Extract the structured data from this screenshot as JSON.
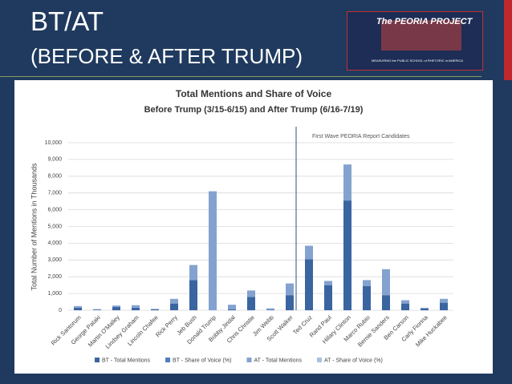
{
  "header": {
    "title": "BT/AT",
    "subtitle": "(BEFORE & AFTER TRUMP)",
    "logo_title": "The PEORIA PROJECT",
    "logo_caption": "MEASURING the PUBLIC SCHOOL of RHETORIC in AMERICA"
  },
  "chart_data": {
    "type": "stacked_bar",
    "title": "Total Mentions and Share of Voice",
    "subtitle": "Before Trump (3/15-6/15) and After Trump (6/16-7/19)",
    "y_label": "Total Number of Mentions in Thousands",
    "annotation": "First Wave PEORIA Report Candidates",
    "categories": [
      "Rick Santorum",
      "George Pataki",
      "Martin O'Malley",
      "Lindsey Graham",
      "Lincoln Chafee",
      "Rick Perry",
      "Jeb Bush",
      "Donald Trump",
      "Bobby Jindal",
      "Chris Christie",
      "Jim Webb",
      "Scott Walker",
      "Ted Cruz",
      "Rand Paul",
      "Hillary Clinton",
      "Marco Rubio",
      "Bernie Sanders",
      "Ben Carson",
      "Carly Fiorina",
      "Mike Huckabee"
    ],
    "series": [
      {
        "name": "BT - Total Mentions",
        "color": "#3a65a0",
        "values": [
          150,
          30,
          200,
          150,
          50,
          400,
          1800,
          0,
          50,
          800,
          30,
          900,
          3050,
          1500,
          6550,
          1450,
          900,
          400,
          100,
          450
        ]
      },
      {
        "name": "BT - Share of Voice (%)",
        "color": "#4f7fbf",
        "values": [
          null,
          null,
          null,
          null,
          null,
          null,
          null,
          null,
          null,
          null,
          null,
          null,
          null,
          null,
          null,
          null,
          null,
          null,
          null,
          null
        ]
      },
      {
        "name": "AT - Total Mentions",
        "color": "#84a2cf",
        "values": [
          100,
          40,
          80,
          150,
          30,
          280,
          900,
          7100,
          280,
          380,
          80,
          700,
          800,
          250,
          2150,
          350,
          1550,
          200,
          50,
          230
        ]
      },
      {
        "name": "AT - Share of Voice (%)",
        "color": "#a9c0e0",
        "values": [
          null,
          null,
          null,
          null,
          null,
          null,
          null,
          null,
          null,
          null,
          null,
          null,
          null,
          null,
          null,
          null,
          null,
          null,
          null,
          null
        ]
      }
    ],
    "ylim": [
      0,
      10000
    ],
    "yticks": [
      0,
      {
        "value": 1000,
        "label": "1,000"
      },
      {
        "value": 2000,
        "label": "2,000"
      },
      {
        "value": 3000,
        "label": "3,000"
      },
      {
        "value": 4000,
        "label": "4,000"
      },
      {
        "value": 5000,
        "label": "5,000"
      },
      {
        "value": 6000,
        "label": "6,000"
      },
      {
        "value": 7000,
        "label": "7,000"
      },
      {
        "value": 8000,
        "label": "8,000"
      },
      {
        "value": 9000,
        "label": "9,000"
      },
      {
        "value": 10000,
        "label": "10,000"
      }
    ],
    "grid": true
  }
}
